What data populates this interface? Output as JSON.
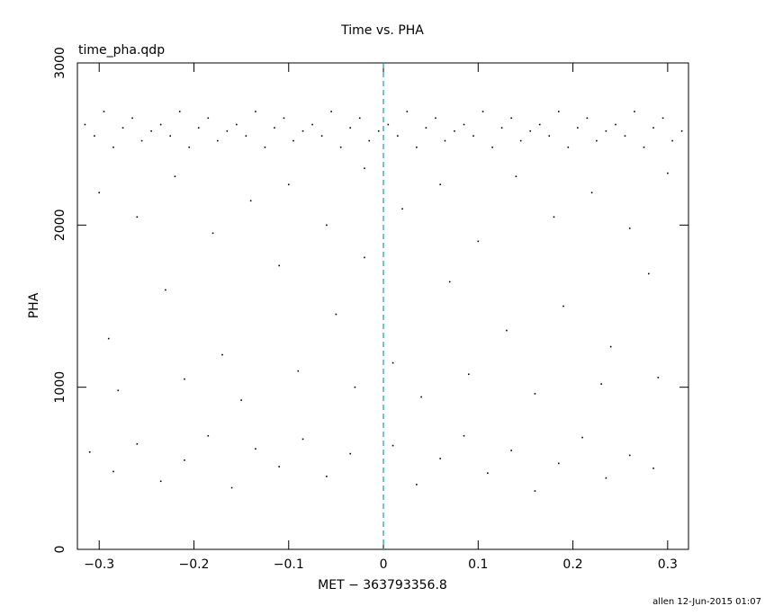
{
  "chart_data": {
    "type": "scatter",
    "title": "Time vs. PHA",
    "subtitle": "time_pha.qdp",
    "x_label": "MET − 363793356.8",
    "y_label": "PHA",
    "footer": "allen 12-Jun-2015 01:07",
    "xlim": [
      -0.323,
      0.322
    ],
    "ylim": [
      0,
      3000
    ],
    "xticks": [
      {
        "value": -0.3,
        "label": "−0.3"
      },
      {
        "value": -0.2,
        "label": "−0.2"
      },
      {
        "value": -0.1,
        "label": "−0.1"
      },
      0,
      0.1,
      0.2,
      0.3
    ],
    "yticks": [
      0,
      1000,
      2000,
      3000
    ],
    "vline": {
      "value": 0,
      "color": "#1a9aa8"
    },
    "series": [
      {
        "name": "PHA",
        "color": "#000000",
        "x": [
          -0.315,
          -0.305,
          -0.295,
          -0.285,
          -0.275,
          -0.265,
          -0.255,
          -0.245,
          -0.235,
          -0.225,
          -0.215,
          -0.205,
          -0.195,
          -0.185,
          -0.175,
          -0.165,
          -0.155,
          -0.145,
          -0.135,
          -0.125,
          -0.115,
          -0.105,
          -0.095,
          -0.085,
          -0.075,
          -0.065,
          -0.055,
          -0.045,
          -0.035,
          -0.025,
          -0.015,
          -0.005,
          0.005,
          0.015,
          0.025,
          0.035,
          0.045,
          0.055,
          0.065,
          0.075,
          0.085,
          0.095,
          0.105,
          0.115,
          0.125,
          0.135,
          0.145,
          0.155,
          0.165,
          0.175,
          0.185,
          0.195,
          0.205,
          0.215,
          0.225,
          0.235,
          0.245,
          0.255,
          0.265,
          0.275,
          0.285,
          0.295,
          0.305,
          0.315,
          -0.3,
          -0.26,
          -0.22,
          -0.18,
          -0.14,
          -0.1,
          -0.06,
          -0.02,
          0.02,
          0.06,
          0.1,
          0.14,
          0.18,
          0.22,
          0.26,
          0.3,
          -0.29,
          -0.23,
          -0.17,
          -0.11,
          -0.05,
          0.01,
          0.07,
          0.13,
          0.19,
          0.24,
          0.28,
          -0.02,
          -0.28,
          -0.21,
          -0.15,
          -0.09,
          -0.03,
          0.04,
          0.09,
          0.16,
          0.23,
          0.29,
          -0.31,
          -0.285,
          -0.26,
          -0.235,
          -0.21,
          -0.185,
          -0.16,
          -0.135,
          -0.11,
          -0.085,
          -0.06,
          -0.035,
          0.01,
          0.035,
          0.06,
          0.085,
          0.11,
          0.135,
          0.16,
          0.185,
          0.21,
          0.235,
          0.26,
          0.285
        ],
        "values": [
          2620,
          2550,
          2700,
          2480,
          2600,
          2660,
          2520,
          2580,
          2620,
          2550,
          2700,
          2480,
          2600,
          2660,
          2520,
          2580,
          2620,
          2550,
          2700,
          2480,
          2600,
          2660,
          2520,
          2580,
          2620,
          2550,
          2700,
          2480,
          2600,
          2660,
          2520,
          2580,
          2620,
          2550,
          2700,
          2480,
          2600,
          2660,
          2520,
          2580,
          2620,
          2550,
          2700,
          2480,
          2600,
          2660,
          2520,
          2580,
          2620,
          2550,
          2700,
          2480,
          2600,
          2660,
          2520,
          2580,
          2620,
          2550,
          2700,
          2480,
          2600,
          2660,
          2520,
          2580,
          2200,
          2050,
          2300,
          1950,
          2150,
          2250,
          2000,
          2350,
          2100,
          2250,
          1900,
          2300,
          2050,
          2200,
          1980,
          2320,
          1300,
          1600,
          1200,
          1750,
          1450,
          1150,
          1650,
          1350,
          1500,
          1250,
          1700,
          1800,
          980,
          1050,
          920,
          1100,
          1000,
          940,
          1080,
          960,
          1020,
          1060,
          600,
          480,
          650,
          420,
          550,
          700,
          380,
          620,
          510,
          680,
          450,
          590,
          640,
          400,
          560,
          700,
          470,
          610,
          360,
          530,
          690,
          440,
          580,
          500
        ]
      }
    ]
  }
}
